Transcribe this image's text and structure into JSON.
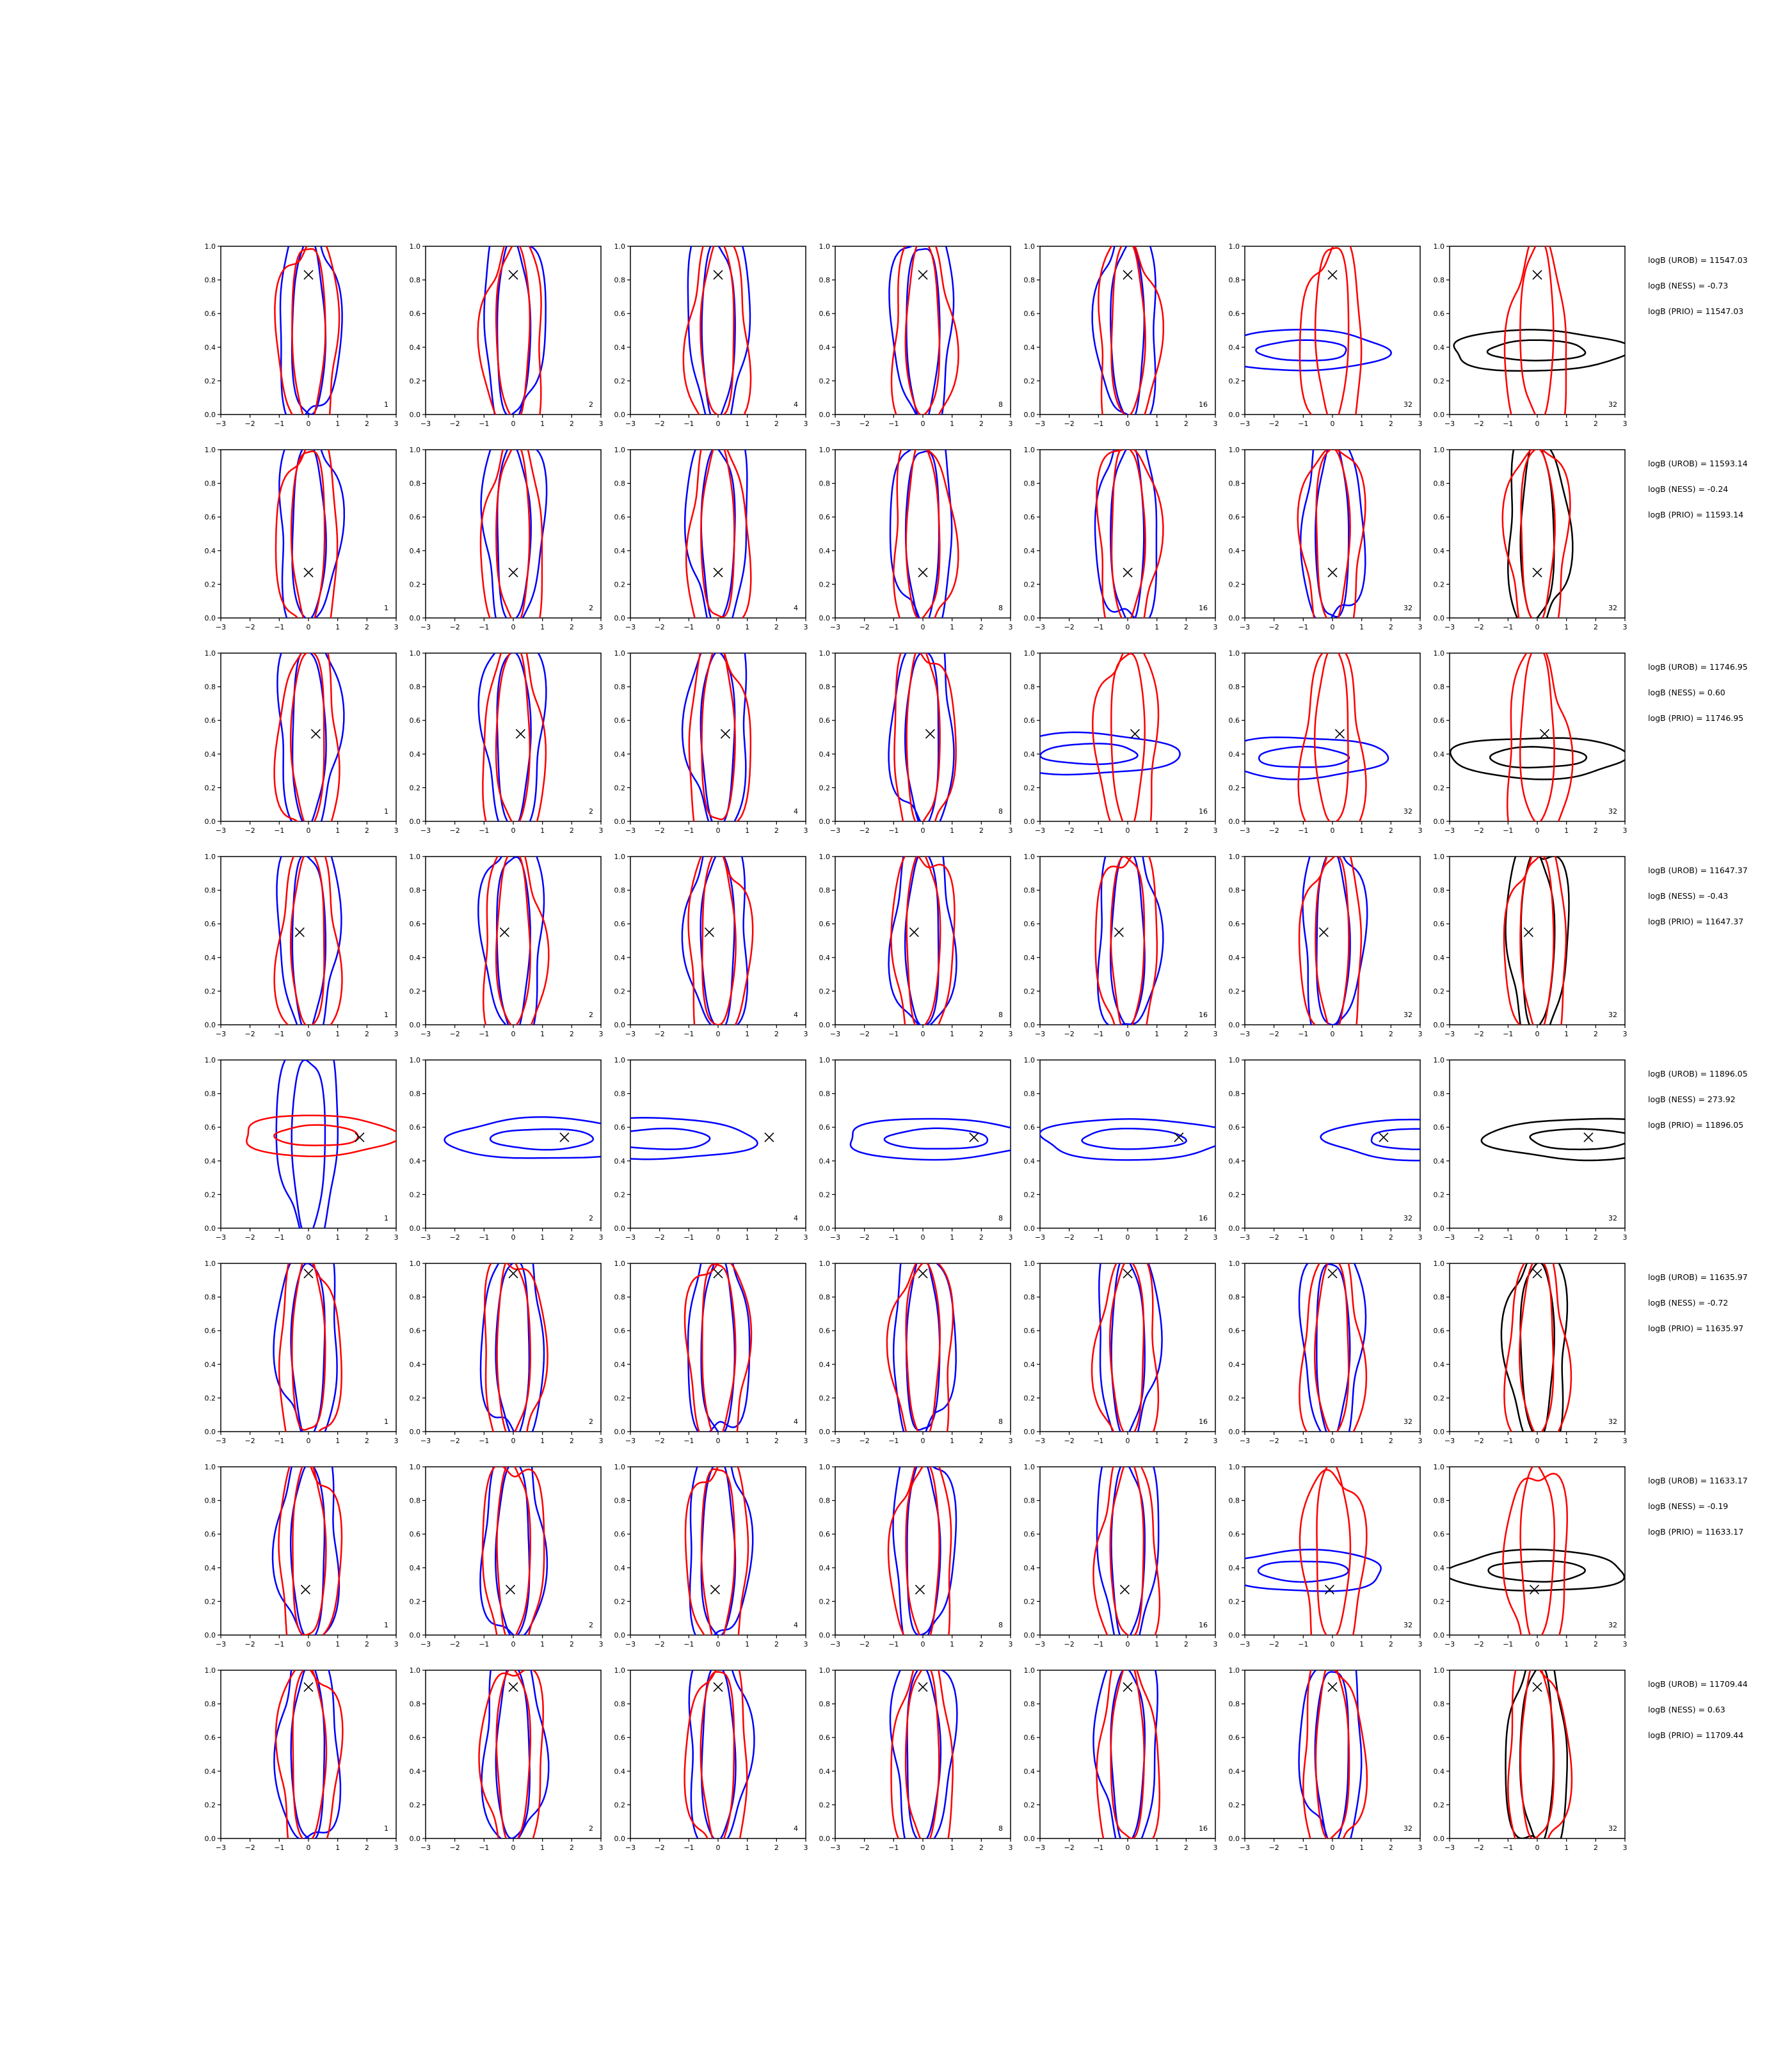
{
  "colors": {
    "blue": "#0000ff",
    "red": "#ff0000",
    "black": "#000000",
    "axis": "#000000"
  },
  "chart_data": {
    "type": "contour-grid",
    "rows": 8,
    "cols": 7,
    "xlim": [
      -3,
      3
    ],
    "ylim": [
      0.0,
      1.0
    ],
    "xticks": [
      "−3",
      "−2",
      "−1",
      "0",
      "1",
      "2",
      "3"
    ],
    "yticks": [
      "0.0",
      "0.2",
      "0.4",
      "0.6",
      "0.8",
      "1.0"
    ],
    "panel_labels": [
      "1",
      "2",
      "4",
      "8",
      "16",
      "32",
      "32"
    ],
    "row_stats": [
      {
        "urob": "logB (UROB) = 11547.03",
        "ness": "logB (NESS) = -0.73",
        "prio": "logB (PRIO) = 11547.03",
        "marker": [
          0.0,
          0.83
        ]
      },
      {
        "urob": "logB (UROB) = 11593.14",
        "ness": "logB (NESS) = -0.24",
        "prio": "logB (PRIO) = 11593.14",
        "marker": [
          0.0,
          0.27
        ]
      },
      {
        "urob": "logB (UROB) = 11746.95",
        "ness": "logB (NESS) = 0.60",
        "prio": "logB (PRIO) = 11746.95",
        "marker": [
          0.25,
          0.52
        ]
      },
      {
        "urob": "logB (UROB) = 11647.37",
        "ness": "logB (NESS) = -0.43",
        "prio": "logB (PRIO) = 11647.37",
        "marker": [
          -0.3,
          0.55
        ]
      },
      {
        "urob": "logB (UROB) = 11896.05",
        "ness": "logB (NESS) = 273.92",
        "prio": "logB (PRIO) = 11896.05",
        "marker": [
          1.75,
          0.54
        ]
      },
      {
        "urob": "logB (UROB) = 11635.97",
        "ness": "logB (NESS) = -0.72",
        "prio": "logB (PRIO) = 11635.97",
        "marker": [
          0.0,
          0.94
        ]
      },
      {
        "urob": "logB (UROB) = 11633.17",
        "ness": "logB (NESS) = -0.19",
        "prio": "logB (PRIO) = 11633.17",
        "marker": [
          -0.1,
          0.27
        ]
      },
      {
        "urob": "logB (UROB) = 11709.44",
        "ness": "logB (NESS) = 0.63",
        "prio": "logB (PRIO) = 11709.44",
        "marker": [
          0.0,
          0.9
        ]
      }
    ]
  }
}
